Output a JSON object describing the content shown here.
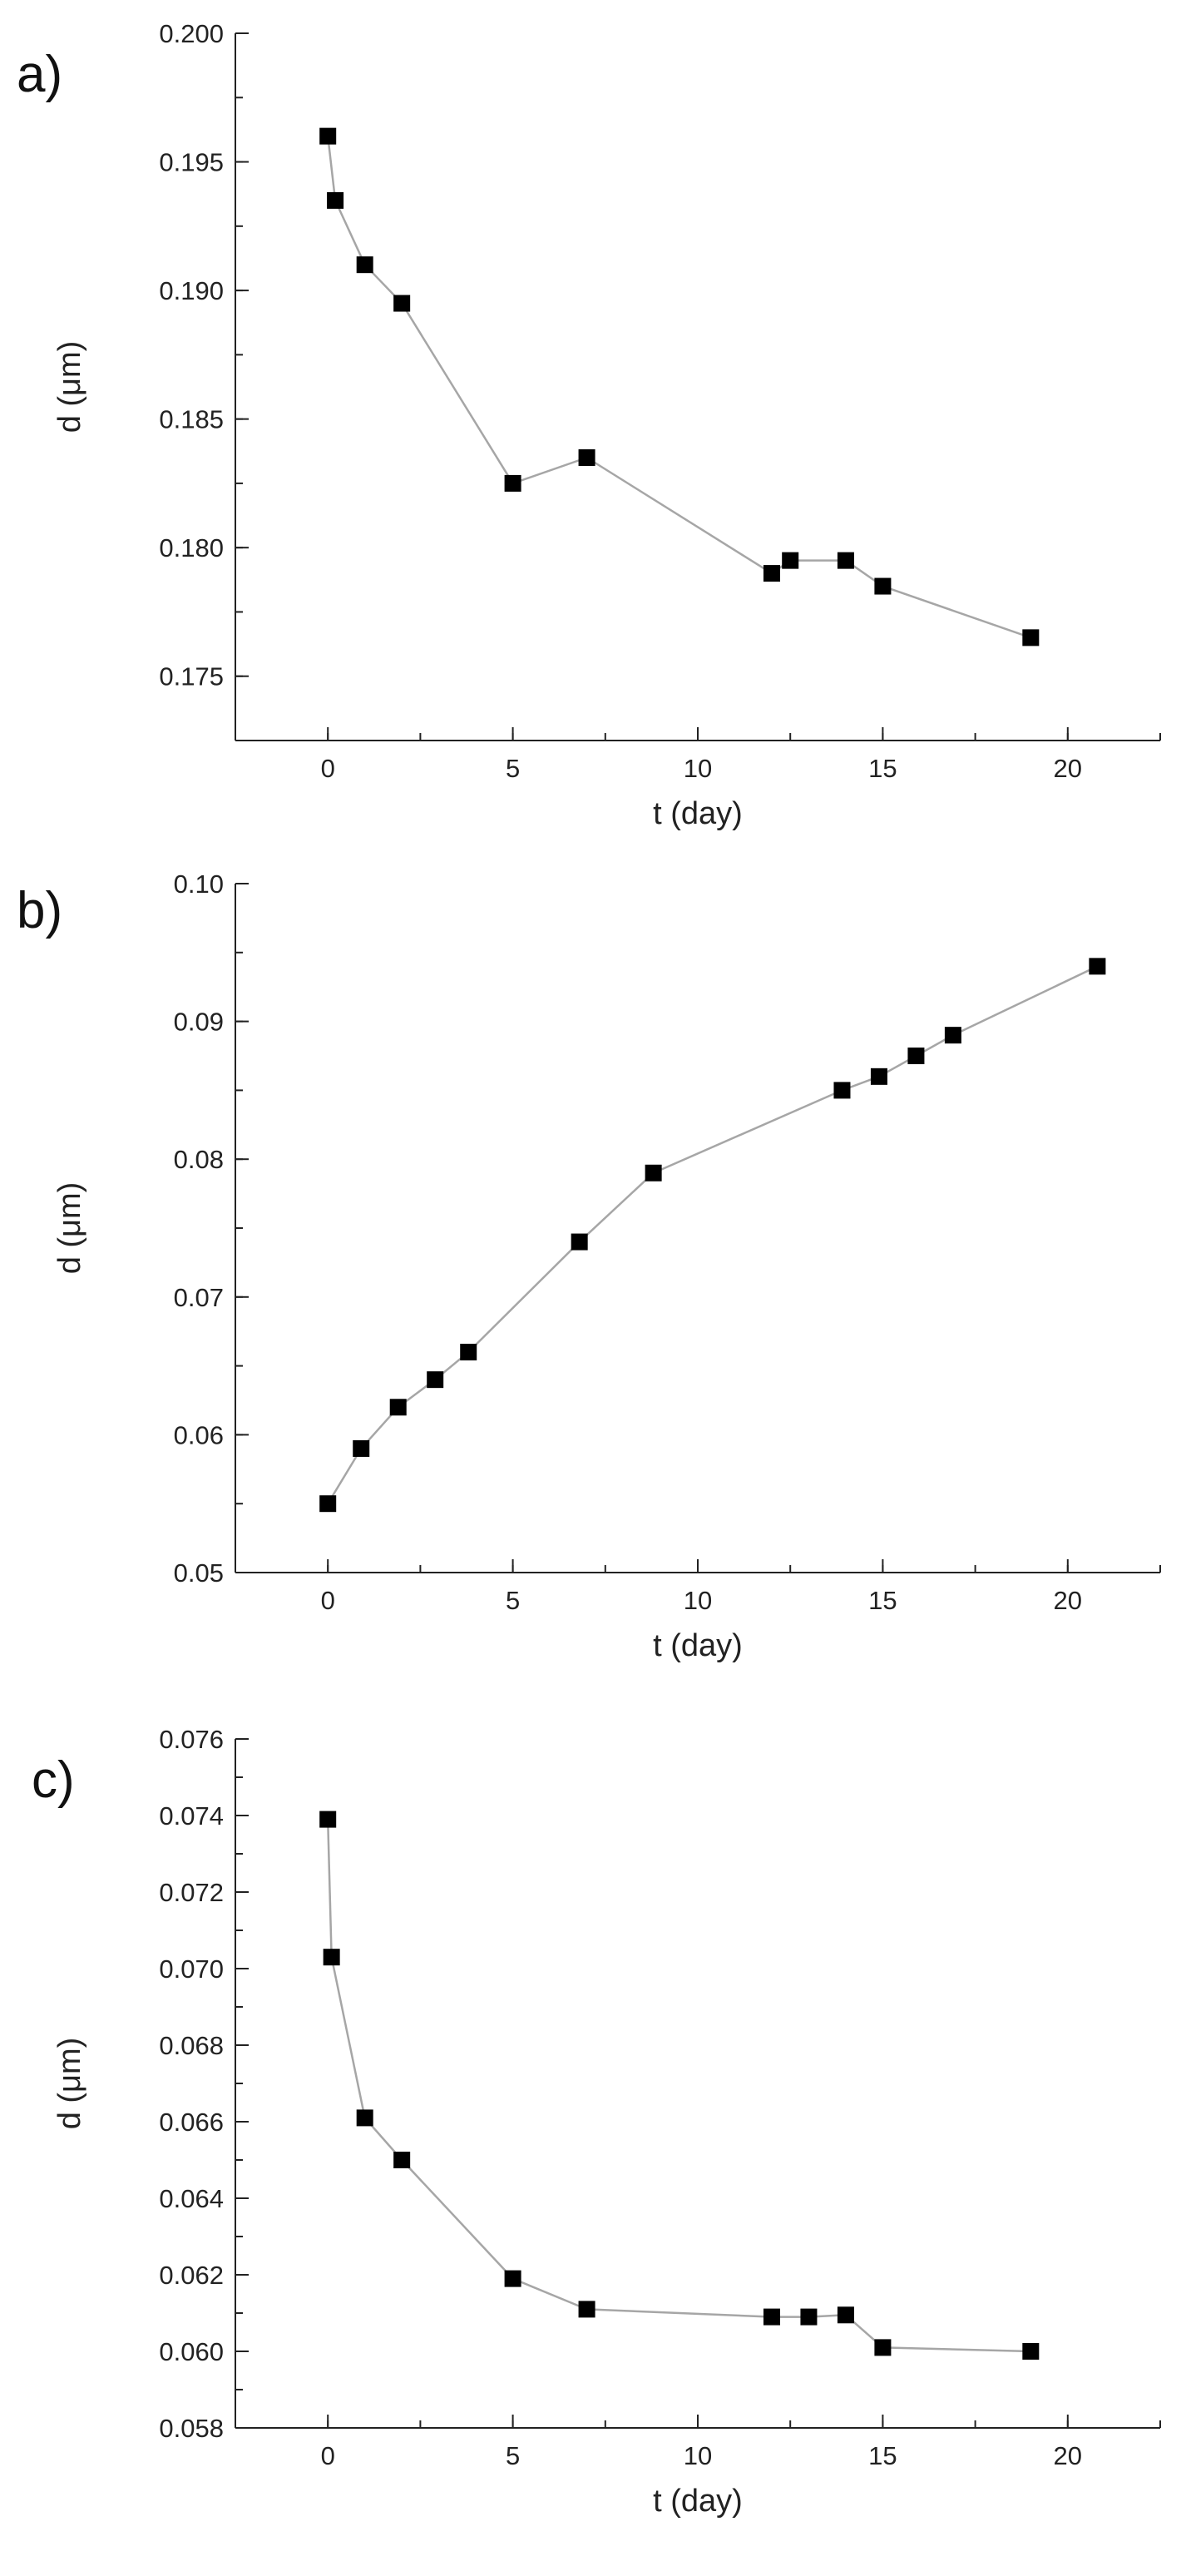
{
  "colors": {
    "line": "#a6a6a6",
    "marker": "#000000",
    "axis": "#222222"
  },
  "chart_data": [
    {
      "type": "scatter",
      "panel_label": "a)",
      "xlabel": "t (day)",
      "ylabel": "d (μm)",
      "xlim": [
        -2.5,
        22.5
      ],
      "ylim": [
        0.1725,
        0.2
      ],
      "xticks": [
        0,
        5,
        10,
        15,
        20
      ],
      "xtick_labels": [
        "0",
        "5",
        "10",
        "15",
        "20"
      ],
      "yticks": [
        0.175,
        0.18,
        0.185,
        0.19,
        0.195,
        0.2
      ],
      "ytick_labels": [
        "0.175",
        "0.180",
        "0.185",
        "0.190",
        "0.195",
        "0.200"
      ],
      "minor_y_step": 0.0025,
      "minor_x_step": 2.5,
      "connected": true,
      "marker": "square",
      "x": [
        0,
        0.2,
        1,
        2,
        5,
        7,
        12,
        12.5,
        14,
        15,
        19
      ],
      "y": [
        0.196,
        0.1935,
        0.191,
        0.1895,
        0.1825,
        0.1835,
        0.179,
        0.1795,
        0.1795,
        0.1785,
        0.1765
      ]
    },
    {
      "type": "scatter",
      "panel_label": "b)",
      "xlabel": "t (day)",
      "ylabel": "d (μm)",
      "xlim": [
        -2.5,
        22.5
      ],
      "ylim": [
        0.05,
        0.1
      ],
      "xticks": [
        0,
        5,
        10,
        15,
        20
      ],
      "xtick_labels": [
        "0",
        "5",
        "10",
        "15",
        "20"
      ],
      "yticks": [
        0.05,
        0.06,
        0.07,
        0.08,
        0.09,
        0.1
      ],
      "ytick_labels": [
        "0.05",
        "0.06",
        "0.07",
        "0.08",
        "0.09",
        "0.10"
      ],
      "minor_y_step": 0.005,
      "minor_x_step": 2.5,
      "connected": true,
      "marker": "square",
      "x": [
        0,
        0.9,
        1.9,
        2.9,
        3.8,
        6.8,
        8.8,
        13.9,
        14.9,
        15.9,
        16.9,
        20.8
      ],
      "y": [
        0.055,
        0.059,
        0.062,
        0.064,
        0.066,
        0.074,
        0.079,
        0.085,
        0.086,
        0.0875,
        0.089,
        0.094
      ]
    },
    {
      "type": "scatter",
      "panel_label": "c)",
      "xlabel": "t (day)",
      "ylabel": "d (μm)",
      "xlim": [
        -2.5,
        22.5
      ],
      "ylim": [
        0.058,
        0.076
      ],
      "xticks": [
        0,
        5,
        10,
        15,
        20
      ],
      "xtick_labels": [
        "0",
        "5",
        "10",
        "15",
        "20"
      ],
      "yticks": [
        0.058,
        0.06,
        0.062,
        0.064,
        0.066,
        0.068,
        0.07,
        0.072,
        0.074,
        0.076
      ],
      "ytick_labels": [
        "0.058",
        "0.060",
        "0.062",
        "0.064",
        "0.066",
        "0.068",
        "0.070",
        "0.072",
        "0.074",
        "0.076"
      ],
      "minor_y_step": 0.001,
      "minor_x_step": 2.5,
      "connected": true,
      "marker": "square",
      "x": [
        0,
        0.1,
        1,
        2,
        5,
        7,
        12,
        13,
        14,
        15,
        19
      ],
      "y": [
        0.0739,
        0.0703,
        0.0661,
        0.065,
        0.0619,
        0.0611,
        0.0609,
        0.0609,
        0.06095,
        0.0601,
        0.06
      ]
    }
  ]
}
